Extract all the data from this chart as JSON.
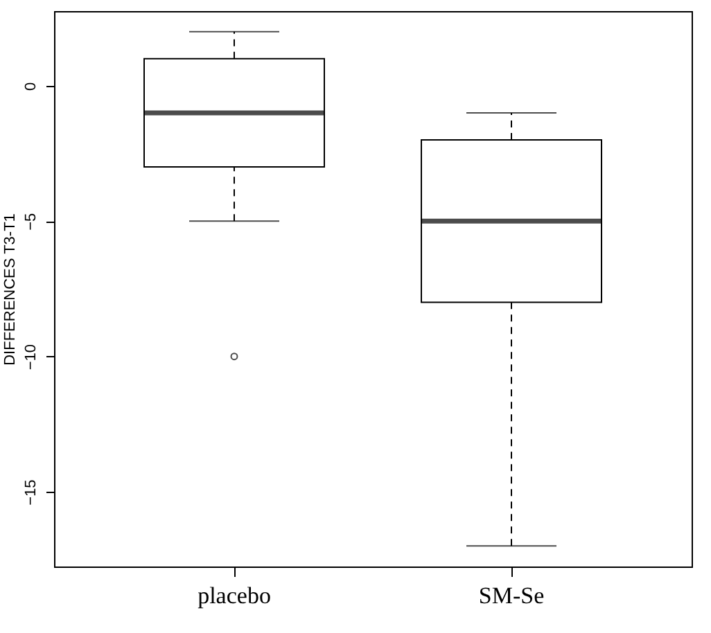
{
  "chart_data": {
    "type": "box",
    "ylabel": "DIFFERENCES T3-T1",
    "categories": [
      "placebo",
      "SM-Se"
    ],
    "boxes": [
      {
        "low": -5,
        "q1": -3,
        "median": -1,
        "q3": 1,
        "high": 2,
        "outliers": [
          -10
        ]
      },
      {
        "low": -17,
        "q1": -8,
        "median": -5,
        "q3": -2,
        "high": -1
      }
    ],
    "ylim": [
      -17.76,
      2.76
    ],
    "yticks": [
      -15,
      -10,
      -5,
      0
    ]
  }
}
